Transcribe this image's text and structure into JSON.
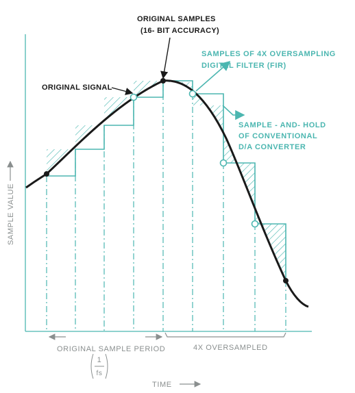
{
  "labels": {
    "original_samples_line1": "ORIGINAL SAMPLES",
    "original_samples_line2": "(16- BIT ACCURACY)",
    "original_signal": "ORIGINAL SIGNAL",
    "fir_line1": "SAMPLES OF 4X OVERSAMPLING",
    "fir_line2": "DIGITAL FILTER (FIR)",
    "sah_line1": "SAMPLE - AND- HOLD",
    "sah_line2": "OF CONVENTIONAL",
    "sah_line3": "D/A CONVERTER",
    "y_axis": "SAMPLE VALUE",
    "x_axis": "TIME",
    "original_period": "ORIGINAL SAMPLE PERIOD",
    "oversampled": "4X OVERSAMPLED",
    "fraction_num": "1",
    "fraction_den": "fs"
  },
  "colors": {
    "signal": "#1a1a1a",
    "teal": "#4bb6b0",
    "grey": "#8a8f8f"
  }
}
